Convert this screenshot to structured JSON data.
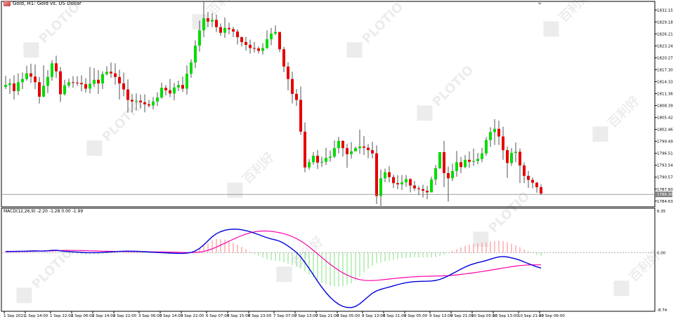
{
  "header": {
    "title": "Gold, H1:  Gold vs. US Dollar"
  },
  "macd_header": {
    "label": "MACD(12,26,9) -2.20 -1.28 0.00 -1.99"
  },
  "watermark": {
    "text": "PLOTIO",
    "cn_text": "百利好"
  },
  "colors": {
    "bull": "#00dc00",
    "bear": "#e60000",
    "wick": "#505050",
    "macd_line": "#0000dc",
    "signal_line": "#ff00aa",
    "hist_pos": "#ff8080",
    "hist_neg": "#80e080",
    "grid_line": "#808080",
    "price_line": "#808080",
    "price_tag_bg": "#808080"
  },
  "chart_data": [
    {
      "type": "candlestick",
      "symbol": "Gold",
      "timeframe": "H1",
      "y_ticks": [
        1832.15,
        1829.18,
        1826.21,
        1823.24,
        1820.27,
        1817.3,
        1814.33,
        1811.36,
        1808.39,
        1805.42,
        1802.46,
        1799.49,
        1796.51,
        1793.54,
        1790.57,
        1787.6,
        1784.63
      ],
      "ylim": [
        1783.2,
        1834.3
      ],
      "current_price": 1786.3,
      "current_price_label": "1786.30",
      "x_labels": [
        "1 Sep 2021",
        "1 Sep 14:00",
        "1 Sep 22:00",
        "2 Sep 06:00",
        "2 Sep 14:00",
        "2 Sep 22:00",
        "3 Sep 06:00",
        "3 Sep 14:00",
        "3 Sep 22:00",
        "6 Sep 07:00",
        "6 Sep 15:00",
        "6 Sep 23:00",
        "7 Sep 07:00",
        "7 Sep 13:00",
        "7 Sep 21:00",
        "8 Sep 05:00",
        "8 Sep 13:00",
        "8 Sep 21:00",
        "9 Sep 05:00",
        "9 Sep 13:00",
        "9 Sep 21:00",
        "10 Sep 05:00",
        "10 Sep 13:00",
        "10 Sep 21:00",
        "13 Sep 06:00"
      ],
      "close": [
        1813.5,
        1813.9,
        1812.0,
        1814.2,
        1815.0,
        1816.4,
        1815.6,
        1814.2,
        1810.6,
        1813.3,
        1815.5,
        1818.9,
        1816.9,
        1811.2,
        1813.4,
        1814.2,
        1814.1,
        1814.0,
        1813.7,
        1812.6,
        1813.8,
        1814.8,
        1813.9,
        1816.2,
        1816.8,
        1816.4,
        1815.5,
        1813.9,
        1812.4,
        1809.8,
        1809.4,
        1809.6,
        1809.2,
        1808.7,
        1808.4,
        1809.4,
        1810.4,
        1812.8,
        1812.2,
        1811.4,
        1812.9,
        1813.5,
        1812.6,
        1816.3,
        1819.1,
        1823.3,
        1827.1,
        1830.1,
        1829.3,
        1829.7,
        1827.9,
        1826.5,
        1827.7,
        1827.4,
        1826.8,
        1825.4,
        1824.2,
        1823.5,
        1822.7,
        1822.6,
        1822.0,
        1822.7,
        1824.9,
        1826.3,
        1826.7,
        1822.4,
        1818.1,
        1815.0,
        1811.3,
        1809.8,
        1801.9,
        1793.0,
        1794.3,
        1795.9,
        1794.2,
        1794.4,
        1795.4,
        1795.7,
        1797.8,
        1799.6,
        1797.8,
        1796.3,
        1797.0,
        1797.8,
        1798.2,
        1797.9,
        1797.3,
        1796.5,
        1785.9,
        1790.3,
        1791.8,
        1790.6,
        1789.1,
        1788.8,
        1789.3,
        1790.1,
        1788.5,
        1787.8,
        1787.6,
        1787.2,
        1786.8,
        1790.0,
        1792.8,
        1796.8,
        1791.6,
        1790.3,
        1792.1,
        1794.3,
        1793.1,
        1794.9,
        1794.4,
        1794.6,
        1795.1,
        1796.5,
        1799.8,
        1801.8,
        1802.6,
        1800.7,
        1797.3,
        1794.1,
        1796.6,
        1796.9,
        1793.5,
        1790.9,
        1789.9,
        1789.2,
        1788.1,
        1786.5
      ],
      "high": [
        1815.8,
        1815.1,
        1815.9,
        1816.4,
        1816.6,
        1818.3,
        1818.8,
        1818.6,
        1815.5,
        1818.4,
        1817.2,
        1819.7,
        1820.8,
        1818.0,
        1814.8,
        1815.1,
        1815.7,
        1815.7,
        1815.9,
        1815.2,
        1818.0,
        1817.7,
        1817.2,
        1816.9,
        1818.2,
        1819.1,
        1818.9,
        1817.3,
        1816.6,
        1814.9,
        1811.3,
        1811.4,
        1811.1,
        1811.2,
        1809.8,
        1810.5,
        1811.7,
        1814.1,
        1813.5,
        1815.0,
        1814.0,
        1814.6,
        1815.6,
        1818.4,
        1819.9,
        1824.6,
        1829.5,
        1834.3,
        1831.7,
        1831.4,
        1831.0,
        1828.8,
        1830.3,
        1829.0,
        1828.0,
        1827.4,
        1825.6,
        1825.5,
        1824.8,
        1824.2,
        1823.1,
        1823.9,
        1827.1,
        1827.7,
        1828.3,
        1826.3,
        1823.0,
        1819.2,
        1816.8,
        1812.5,
        1813.1,
        1804.2,
        1795.1,
        1796.8,
        1797.3,
        1795.7,
        1797.9,
        1797.2,
        1799.7,
        1800.6,
        1799.8,
        1798.9,
        1799.3,
        1798.2,
        1802.4,
        1800.8,
        1798.8,
        1799.4,
        1798.5,
        1792.5,
        1792.7,
        1793.3,
        1791.2,
        1791.1,
        1791.1,
        1791.1,
        1790.3,
        1789.6,
        1788.4,
        1788.7,
        1788.4,
        1790.7,
        1793.6,
        1796.8,
        1799.6,
        1793.2,
        1793.9,
        1797.1,
        1795.6,
        1796.1,
        1797.0,
        1797.7,
        1796.6,
        1797.9,
        1800.5,
        1803.0,
        1805.0,
        1804.6,
        1803.1,
        1798.2,
        1797.8,
        1799.2,
        1797.7,
        1794.2,
        1792.1,
        1790.5,
        1789.4,
        1788.8
      ],
      "low": [
        1812.5,
        1811.3,
        1809.9,
        1811.0,
        1812.5,
        1814.6,
        1814.0,
        1812.5,
        1808.9,
        1810.5,
        1811.5,
        1814.6,
        1815.3,
        1809.3,
        1810.9,
        1812.9,
        1812.8,
        1813.3,
        1811.9,
        1811.6,
        1811.4,
        1813.0,
        1811.3,
        1812.5,
        1815.9,
        1815.3,
        1813.6,
        1809.9,
        1810.7,
        1806.6,
        1806.7,
        1807.3,
        1807.7,
        1806.7,
        1807.9,
        1807.4,
        1808.3,
        1810.1,
        1810.9,
        1810.5,
        1809.7,
        1812.0,
        1811.8,
        1811.1,
        1815.3,
        1817.7,
        1821.8,
        1825.4,
        1827.9,
        1827.9,
        1826.7,
        1825.7,
        1825.2,
        1826.1,
        1825.4,
        1823.6,
        1823.1,
        1822.1,
        1821.3,
        1821.6,
        1821.3,
        1821.1,
        1822.5,
        1823.4,
        1825.9,
        1821.7,
        1816.7,
        1812.2,
        1808.9,
        1808.3,
        1801.1,
        1791.8,
        1792.4,
        1793.7,
        1792.6,
        1793.1,
        1793.6,
        1794.4,
        1795.3,
        1796.5,
        1795.7,
        1792.9,
        1795.2,
        1797.0,
        1796.4,
        1796.1,
        1795.3,
        1795.3,
        1783.9,
        1783.4,
        1789.3,
        1789.3,
        1787.9,
        1787.6,
        1787.4,
        1788.2,
        1786.8,
        1787.2,
        1786.1,
        1785.5,
        1785.1,
        1786.8,
        1788.6,
        1792.6,
        1788.1,
        1784.5,
        1789.6,
        1790.7,
        1791.6,
        1792.8,
        1792.9,
        1793.4,
        1793.8,
        1794.3,
        1795.9,
        1798.1,
        1798.6,
        1798.6,
        1794.9,
        1790.4,
        1793.4,
        1794.3,
        1789.1,
        1789.1,
        1787.9,
        1787.8,
        1786.7,
        1786.1
      ],
      "macd": {
        "label": "MACD(12,26,9)",
        "values_text": "-2.20 -1.28 0.00 -1.99",
        "y_ticks": [
          6.35,
          0.0,
          -8.74
        ],
        "ylim": [
          -8.74,
          6.35
        ],
        "macd_line": [
          0.186,
          0.175,
          0.189,
          0.203,
          0.212,
          0.228,
          0.251,
          0.267,
          0.239,
          0.247,
          0.287,
          0.345,
          0.359,
          0.269,
          0.203,
          0.159,
          0.118,
          0.08,
          0.038,
          -0.004,
          -0.012,
          -0.009,
          -0.011,
          0.023,
          0.065,
          0.11,
          0.152,
          0.188,
          0.214,
          0.226,
          0.217,
          0.198,
          0.174,
          0.139,
          0.099,
          0.057,
          0.022,
          -0.009,
          -0.044,
          -0.072,
          -0.095,
          -0.11,
          -0.118,
          -0.079,
          0.028,
          0.264,
          0.644,
          1.189,
          1.817,
          2.424,
          2.894,
          3.205,
          3.422,
          3.538,
          3.589,
          3.58,
          3.496,
          3.366,
          3.192,
          2.982,
          2.756,
          2.513,
          2.285,
          2.089,
          1.944,
          1.749,
          1.425,
          1.008,
          0.534,
          0.024,
          -0.638,
          -1.508,
          -2.426,
          -3.387,
          -4.358,
          -5.282,
          -6.108,
          -6.822,
          -7.415,
          -7.881,
          -8.202,
          -8.366,
          -8.392,
          -8.219,
          -7.813,
          -7.274,
          -6.72,
          -6.198,
          -5.836,
          -5.608,
          -5.423,
          -5.248,
          -5.07,
          -4.889,
          -4.727,
          -4.589,
          -4.49,
          -4.423,
          -4.39,
          -4.375,
          -4.364,
          -4.334,
          -4.248,
          -4.082,
          -3.843,
          -3.548,
          -3.206,
          -2.866,
          -2.525,
          -2.198,
          -1.927,
          -1.709,
          -1.528,
          -1.376,
          -1.203,
          -1.006,
          -0.795,
          -0.646,
          -0.596,
          -0.659,
          -0.798,
          -0.953,
          -1.165,
          -1.415,
          -1.673,
          -1.931,
          -2.168,
          -2.35
        ],
        "signal_line": [
          0.142,
          0.144,
          0.152,
          0.161,
          0.171,
          0.184,
          0.198,
          0.214,
          0.226,
          0.237,
          0.252,
          0.274,
          0.299,
          0.317,
          0.329,
          0.333,
          0.331,
          0.323,
          0.31,
          0.294,
          0.276,
          0.258,
          0.24,
          0.223,
          0.208,
          0.194,
          0.183,
          0.174,
          0.167,
          0.161,
          0.156,
          0.151,
          0.145,
          0.138,
          0.13,
          0.122,
          0.114,
          0.104,
          0.093,
          0.08,
          0.065,
          0.048,
          0.03,
          0.015,
          0.009,
          0.025,
          0.077,
          0.185,
          0.354,
          0.579,
          0.844,
          1.134,
          1.439,
          1.748,
          2.05,
          2.337,
          2.599,
          2.831,
          3.023,
          3.167,
          3.262,
          3.304,
          3.297,
          3.246,
          3.16,
          3.043,
          2.888,
          2.689,
          2.441,
          2.14,
          1.779,
          1.353,
          0.873,
          0.353,
          -0.188,
          -0.735,
          -1.271,
          -1.781,
          -2.258,
          -2.696,
          -3.086,
          -3.424,
          -3.711,
          -3.943,
          -4.112,
          -4.216,
          -4.262,
          -4.259,
          -4.222,
          -4.164,
          -4.098,
          -4.029,
          -3.96,
          -3.893,
          -3.831,
          -3.775,
          -3.727,
          -3.686,
          -3.652,
          -3.625,
          -3.605,
          -3.589,
          -3.576,
          -3.56,
          -3.536,
          -3.502,
          -3.455,
          -3.397,
          -3.328,
          -3.251,
          -3.166,
          -3.076,
          -2.982,
          -2.885,
          -2.785,
          -2.683,
          -2.576,
          -2.465,
          -2.352,
          -2.244,
          -2.144,
          -2.054,
          -1.978,
          -1.919,
          -1.878,
          -1.857,
          -1.855,
          -1.872
        ]
      }
    }
  ]
}
